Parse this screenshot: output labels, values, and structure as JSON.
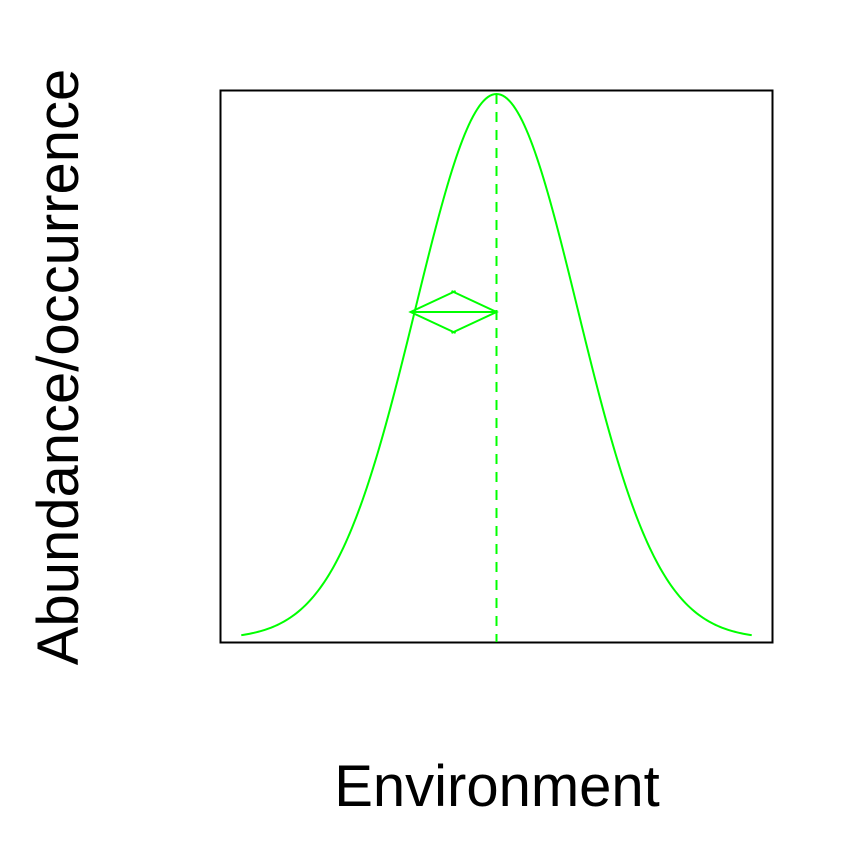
{
  "chart_data": {
    "type": "line",
    "xlabel": "Environment",
    "ylabel": "Abundance/occurrence",
    "xlim": [
      -3.4,
      3.4
    ],
    "ylim": [
      0,
      1
    ],
    "axes_ticks": false,
    "grid": false,
    "legend": "none",
    "series": [
      {
        "curve": "gaussian",
        "mean": 0,
        "sd": 1,
        "x_range": [
          -3.15,
          3.15
        ],
        "peak": 1,
        "color": "#00ff00"
      }
    ],
    "annotations": {
      "optimum_line": {
        "x": 0,
        "style": "dashed",
        "color": "#00ff00"
      },
      "tolerance_arrow": {
        "x_start": -1.06,
        "x_end": 0,
        "y": 0.6,
        "color": "#00ff00"
      }
    }
  }
}
